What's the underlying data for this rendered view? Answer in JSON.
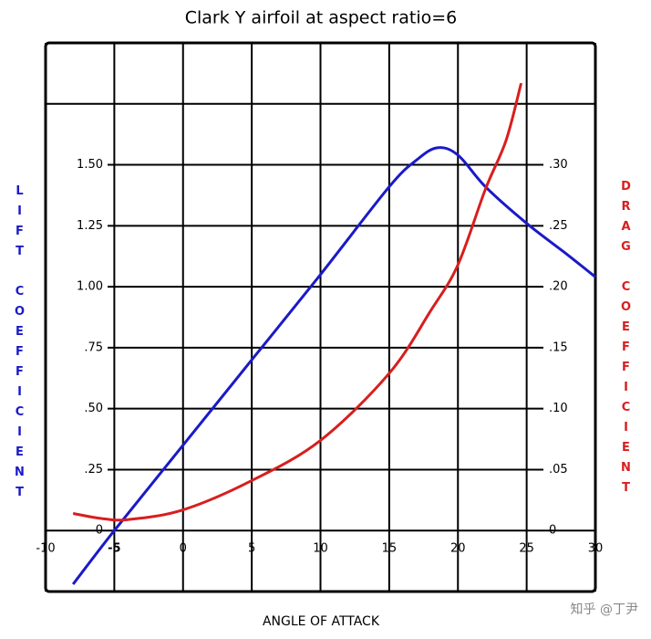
{
  "chart_data": {
    "type": "line",
    "title": "Clark Y airfoil at aspect ratio=6",
    "xlabel": "ANGLE OF ATTACK",
    "ylabel": "LIFT COEFFICIENT",
    "y2label": "DRAG COEFFICIENT",
    "watermark": "知乎 @丁尹",
    "xlim": [
      -10,
      30
    ],
    "xticks": [
      -10,
      -5,
      0,
      5,
      10,
      15,
      20,
      25,
      30
    ],
    "ylim": [
      -0.25,
      2.0
    ],
    "yticks": [
      0,
      {
        "value": 0.25,
        "label": ".25"
      },
      {
        "value": 0.5,
        "label": ".50"
      },
      {
        "value": 0.75,
        "label": ".75"
      },
      {
        "value": 1.0,
        "label": "1.00"
      },
      {
        "value": 1.25,
        "label": "1.25"
      },
      {
        "value": 1.5,
        "label": "1.50"
      }
    ],
    "y2lim": [
      -0.05,
      0.4
    ],
    "y2ticks": [
      0,
      {
        "value": 0.05,
        "label": ".05"
      },
      {
        "value": 0.1,
        "label": ".10"
      },
      {
        "value": 0.15,
        "label": ".15"
      },
      {
        "value": 0.2,
        "label": ".20"
      },
      {
        "value": 0.25,
        "label": ".25"
      },
      {
        "value": 0.3,
        "label": ".30"
      }
    ],
    "grid": true,
    "series": [
      {
        "color": "#1a1ac8",
        "x": [
          -8,
          -5,
          0,
          5,
          10,
          15,
          17,
          18.5,
          20,
          22,
          25,
          28,
          30
        ],
        "values": [
          -0.22,
          0.0,
          0.35,
          0.7,
          1.05,
          1.41,
          1.52,
          1.57,
          1.54,
          1.41,
          1.26,
          1.13,
          1.04
        ]
      },
      {
        "color": "#d81e1e",
        "axis": "y2",
        "x": [
          -8,
          -6,
          -4,
          0,
          5,
          10,
          15,
          18,
          20,
          22,
          23.5,
          24.6
        ],
        "values": [
          0.014,
          0.01,
          0.009,
          0.017,
          0.041,
          0.074,
          0.129,
          0.18,
          0.218,
          0.28,
          0.32,
          0.367
        ]
      }
    ]
  }
}
